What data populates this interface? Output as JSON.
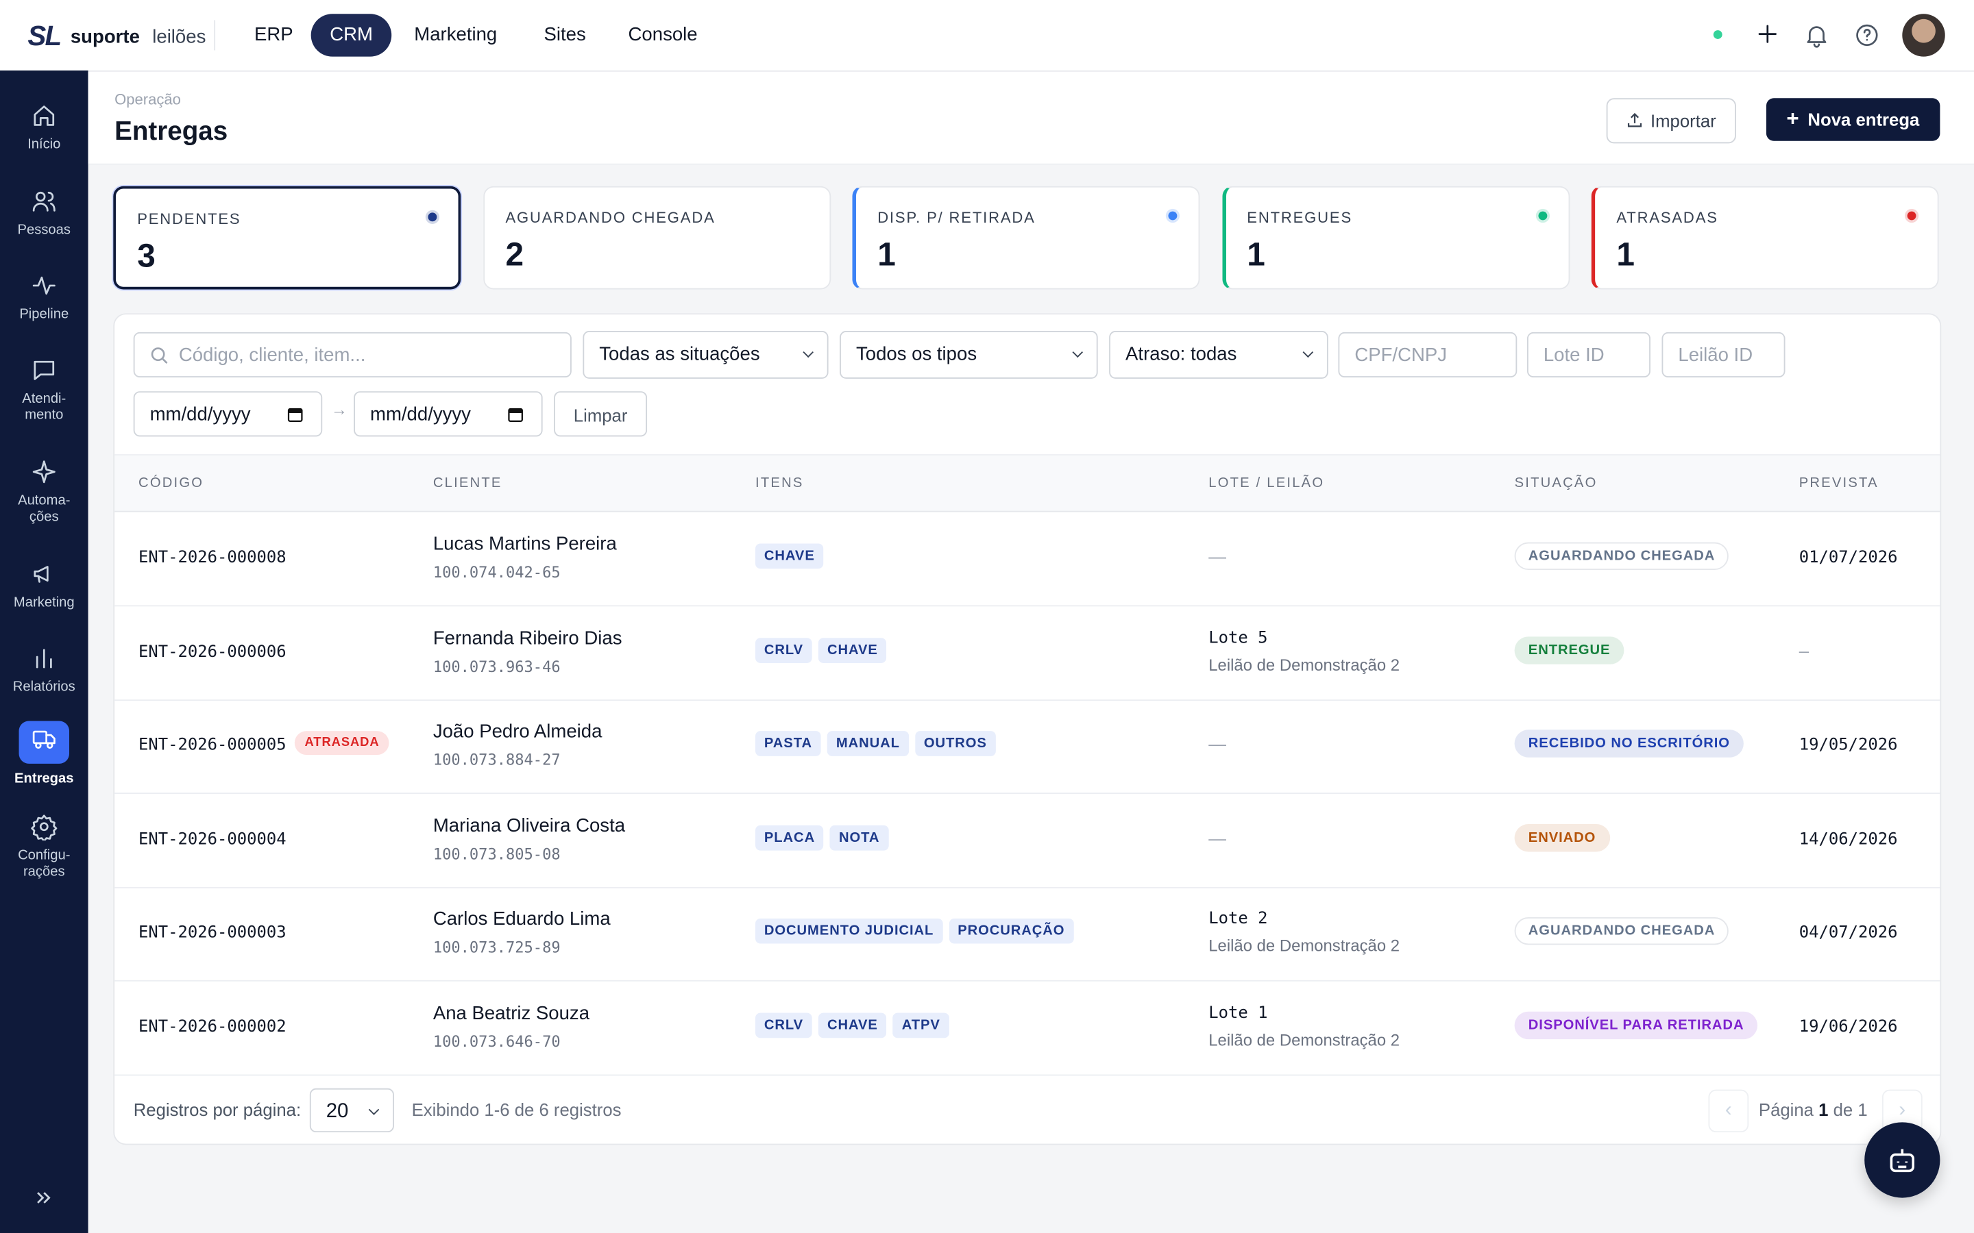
{
  "brand": {
    "logo": "SL",
    "bold": "suporte",
    "light": "leilões"
  },
  "topnav": [
    "ERP",
    "CRM",
    "Marketing",
    "Sites",
    "Console"
  ],
  "sidebar": [
    {
      "lines": [
        "Início"
      ]
    },
    {
      "lines": [
        "Pessoas"
      ]
    },
    {
      "lines": [
        "Pipeline"
      ]
    },
    {
      "lines": [
        "Atendi-",
        "mento"
      ]
    },
    {
      "lines": [
        "Automa-",
        "ções"
      ]
    },
    {
      "lines": [
        "Marketing"
      ]
    },
    {
      "lines": [
        "Relatórios"
      ]
    },
    {
      "lines": [
        "Entregas"
      ]
    },
    {
      "lines": [
        "Configu-",
        "rações"
      ]
    }
  ],
  "header": {
    "breadcrumb": "Operação",
    "title": "Entregas",
    "import": "Importar",
    "new": "Nova entrega"
  },
  "stats": [
    {
      "label": "PENDENTES",
      "value": 3,
      "color": "#1e3a8a"
    },
    {
      "label": "AGUARDANDO CHEGADA",
      "value": 2,
      "color": null
    },
    {
      "label": "DISP. P/ RETIRADA",
      "value": 1,
      "color": "#3b82f6"
    },
    {
      "label": "ENTREGUES",
      "value": 1,
      "color": "#10b981"
    },
    {
      "label": "ATRASADAS",
      "value": 1,
      "color": "#dc2626"
    }
  ],
  "filters": {
    "search": "Código, cliente, item...",
    "situation": "Todas as situações",
    "type": "Todos os tipos",
    "delay": "Atraso: todas",
    "cpf": "CPF/CNPJ",
    "lote": "Lote ID",
    "leilao": "Leilão ID",
    "date_from": "mm/dd/yyyy",
    "date_to": "mm/dd/yyyy",
    "clear": "Limpar"
  },
  "table": {
    "columns": [
      "CÓDIGO",
      "CLIENTE",
      "ITENS",
      "LOTE / LEILÃO",
      "SITUAÇÃO",
      "PREVISTA"
    ],
    "rows": [
      {
        "code": "ENT-2026-000008",
        "flag": null,
        "client": "Lucas Martins Pereira",
        "doc": "100.074.042-65",
        "items": [
          "CHAVE"
        ],
        "lote": "—",
        "leilao": null,
        "status": "AGUARDANDO CHEGADA",
        "status_color": "#64748b",
        "due": "01/07/2026"
      },
      {
        "code": "ENT-2026-000006",
        "flag": null,
        "client": "Fernanda Ribeiro Dias",
        "doc": "100.073.963-46",
        "items": [
          "CRLV",
          "CHAVE"
        ],
        "lote": "Lote 5",
        "leilao": "Leilão de Demonstração 2",
        "status": "ENTREGUE",
        "status_color": "#15803d",
        "due": "—"
      },
      {
        "code": "ENT-2026-000005",
        "flag": "ATRASADA",
        "client": "João Pedro Almeida",
        "doc": "100.073.884-27",
        "items": [
          "PASTA",
          "MANUAL",
          "OUTROS"
        ],
        "lote": "—",
        "leilao": null,
        "status": "RECEBIDO NO ESCRITÓRIO",
        "status_color": "#1e40af",
        "due": "19/05/2026"
      },
      {
        "code": "ENT-2026-000004",
        "flag": null,
        "client": "Mariana Oliveira Costa",
        "doc": "100.073.805-08",
        "items": [
          "PLACA",
          "NOTA"
        ],
        "lote": "—",
        "leilao": null,
        "status": "ENVIADO",
        "status_color": "#b45309",
        "due": "14/06/2026"
      },
      {
        "code": "ENT-2026-000003",
        "flag": null,
        "client": "Carlos Eduardo Lima",
        "doc": "100.073.725-89",
        "items": [
          "DOCUMENTO JUDICIAL",
          "PROCURAÇÃO"
        ],
        "lote": "Lote 2",
        "leilao": "Leilão de Demonstração 2",
        "status": "AGUARDANDO CHEGADA",
        "status_color": "#64748b",
        "due": "04/07/2026"
      },
      {
        "code": "ENT-2026-000002",
        "flag": null,
        "client": "Ana Beatriz Souza",
        "doc": "100.073.646-70",
        "items": [
          "CRLV",
          "CHAVE",
          "ATPV"
        ],
        "lote": "Lote 1",
        "leilao": "Leilão de Demonstração 2",
        "status": "DISPONÍVEL PARA RETIRADA",
        "status_color": "#7e22ce",
        "due": "19/06/2026"
      }
    ]
  },
  "footer": {
    "per_page_label": "Registros por página:",
    "per_page": 20,
    "showing": "Exibindo 1-6 de 6 registros",
    "page_prefix": "Página",
    "page": 1,
    "page_sep": "de",
    "pages": 1
  }
}
